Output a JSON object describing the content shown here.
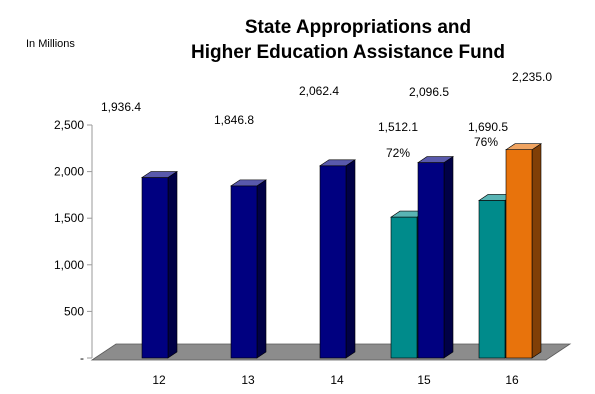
{
  "chart_data": {
    "type": "bar",
    "title_lines": [
      "State Appropriations and",
      "Higher Education Assistance Fund"
    ],
    "unit_label": "In Millions",
    "categories": [
      "12",
      "13",
      "14",
      "15",
      "16"
    ],
    "y_ticks": [
      "-",
      "500",
      "1,000",
      "1,500",
      "2,000",
      "2,500"
    ],
    "ylim": [
      0,
      2500
    ],
    "series": [
      {
        "values": [
          null,
          null,
          null,
          1512.1,
          1690.5
        ],
        "labels": [
          "",
          "",
          "",
          "1,512.1",
          "1,690.5"
        ],
        "color": "#008B8B"
      },
      {
        "values": [
          1936.4,
          1846.8,
          2062.4,
          2096.5,
          null
        ],
        "labels": [
          "1,936.4",
          "1,846.8",
          "2,062.4",
          "2,096.5",
          ""
        ],
        "color": "#000080"
      },
      {
        "values": [
          null,
          null,
          null,
          null,
          2235.0
        ],
        "labels": [
          "",
          "",
          "",
          "",
          "2,235.0"
        ],
        "color": "#E8730C"
      }
    ],
    "annotations": [
      "72%",
      "76%"
    ],
    "grid": false,
    "legend": "none"
  }
}
